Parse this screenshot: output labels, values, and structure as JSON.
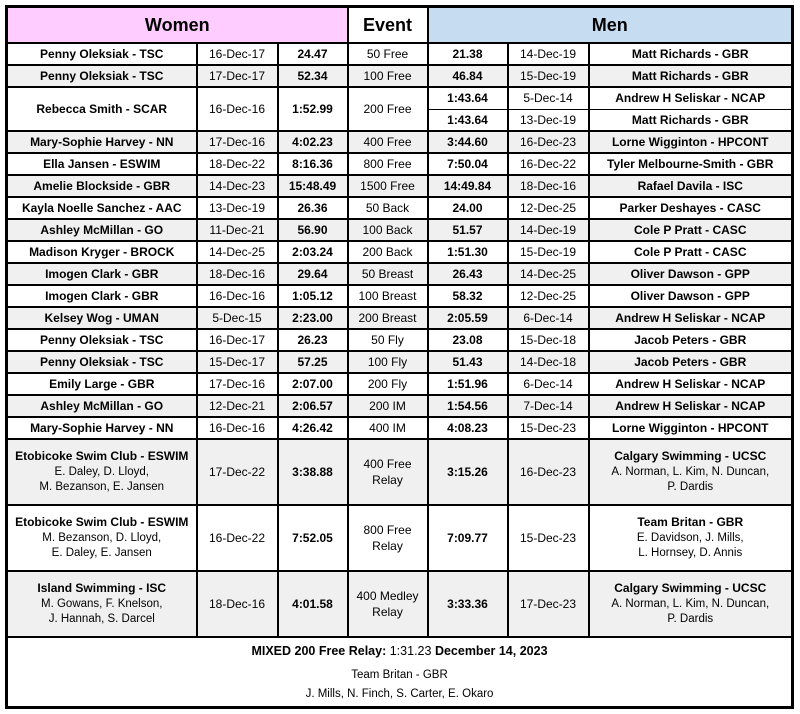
{
  "header": {
    "women": "Women",
    "event": "Event",
    "men": "Men"
  },
  "colors": {
    "women_header_bg": "#FFCCFF",
    "men_header_bg": "#C6DCF1",
    "shaded_row_bg": "#F0F0F0",
    "border": "#000000"
  },
  "rows": [
    {
      "event": "50 Free",
      "shaded": false,
      "tall": false,
      "women": {
        "name": "Penny Oleksiak - TSC",
        "date": "16-Dec-17",
        "time": "24.47"
      },
      "men": [
        {
          "time": "21.38",
          "date": "14-Dec-19",
          "name": "Matt Richards - GBR"
        }
      ]
    },
    {
      "event": "100 Free",
      "shaded": true,
      "tall": false,
      "women": {
        "name": "Penny Oleksiak - TSC",
        "date": "17-Dec-17",
        "time": "52.34"
      },
      "men": [
        {
          "time": "46.84",
          "date": "15-Dec-19",
          "name": "Matt Richards - GBR"
        }
      ]
    },
    {
      "event": "200 Free",
      "shaded": false,
      "tall": false,
      "women": {
        "name": "Rebecca Smith - SCAR",
        "date": "16-Dec-16",
        "time": "1:52.99"
      },
      "men": [
        {
          "time": "1:43.64",
          "date": "5-Dec-14",
          "name": "Andrew H Seliskar - NCAP"
        },
        {
          "time": "1:43.64",
          "date": "13-Dec-19",
          "name": "Matt Richards - GBR"
        }
      ]
    },
    {
      "event": "400 Free",
      "shaded": true,
      "tall": false,
      "women": {
        "name": "Mary-Sophie Harvey - NN",
        "date": "17-Dec-16",
        "time": "4:02.23"
      },
      "men": [
        {
          "time": "3:44.60",
          "date": "16-Dec-23",
          "name": "Lorne Wigginton - HPCONT"
        }
      ]
    },
    {
      "event": "800 Free",
      "shaded": false,
      "tall": false,
      "women": {
        "name": "Ella Jansen - ESWIM",
        "date": "18-Dec-22",
        "time": "8:16.36"
      },
      "men": [
        {
          "time": "7:50.04",
          "date": "16-Dec-22",
          "name": "Tyler Melbourne-Smith - GBR"
        }
      ]
    },
    {
      "event": "1500 Free",
      "shaded": true,
      "tall": false,
      "women": {
        "name": "Amelie Blockside - GBR",
        "date": "14-Dec-23",
        "time": "15:48.49"
      },
      "men": [
        {
          "time": "14:49.84",
          "date": "18-Dec-16",
          "name": "Rafael Davila - ISC"
        }
      ]
    },
    {
      "event": "50 Back",
      "shaded": false,
      "tall": false,
      "women": {
        "name": "Kayla Noelle Sanchez - AAC",
        "date": "13-Dec-19",
        "time": "26.36"
      },
      "men": [
        {
          "time": "24.00",
          "date": "12-Dec-25",
          "name": "Parker Deshayes - CASC"
        }
      ]
    },
    {
      "event": "100 Back",
      "shaded": true,
      "tall": false,
      "women": {
        "name": "Ashley McMillan - GO",
        "date": "11-Dec-21",
        "time": "56.90"
      },
      "men": [
        {
          "time": "51.57",
          "date": "14-Dec-19",
          "name": "Cole P Pratt - CASC"
        }
      ]
    },
    {
      "event": "200 Back",
      "shaded": false,
      "tall": false,
      "women": {
        "name": "Madison Kryger - BROCK",
        "date": "14-Dec-25",
        "time": "2:03.24"
      },
      "men": [
        {
          "time": "1:51.30",
          "date": "15-Dec-19",
          "name": "Cole P Pratt - CASC"
        }
      ]
    },
    {
      "event": "50 Breast",
      "shaded": true,
      "tall": false,
      "women": {
        "name": "Imogen Clark - GBR",
        "date": "18-Dec-16",
        "time": "29.64"
      },
      "men": [
        {
          "time": "26.43",
          "date": "14-Dec-25",
          "name": "Oliver Dawson - GPP"
        }
      ]
    },
    {
      "event": "100 Breast",
      "shaded": false,
      "tall": false,
      "women": {
        "name": "Imogen Clark - GBR",
        "date": "16-Dec-16",
        "time": "1:05.12"
      },
      "men": [
        {
          "time": "58.32",
          "date": "12-Dec-25",
          "name": "Oliver Dawson - GPP"
        }
      ]
    },
    {
      "event": "200 Breast",
      "shaded": true,
      "tall": false,
      "women": {
        "name": "Kelsey Wog - UMAN",
        "date": "5-Dec-15",
        "time": "2:23.00"
      },
      "men": [
        {
          "time": "2:05.59",
          "date": "6-Dec-14",
          "name": "Andrew H Seliskar - NCAP"
        }
      ]
    },
    {
      "event": "50 Fly",
      "shaded": false,
      "tall": false,
      "women": {
        "name": "Penny Oleksiak - TSC",
        "date": "16-Dec-17",
        "time": "26.23"
      },
      "men": [
        {
          "time": "23.08",
          "date": "15-Dec-18",
          "name": "Jacob Peters - GBR"
        }
      ]
    },
    {
      "event": "100 Fly",
      "shaded": true,
      "tall": false,
      "women": {
        "name": "Penny Oleksiak - TSC",
        "date": "15-Dec-17",
        "time": "57.25"
      },
      "men": [
        {
          "time": "51.43",
          "date": "14-Dec-18",
          "name": "Jacob Peters - GBR"
        }
      ]
    },
    {
      "event": "200 Fly",
      "shaded": false,
      "tall": false,
      "women": {
        "name": "Emily Large - GBR",
        "date": "17-Dec-16",
        "time": "2:07.00"
      },
      "men": [
        {
          "time": "1:51.96",
          "date": "6-Dec-14",
          "name": "Andrew H Seliskar - NCAP"
        }
      ]
    },
    {
      "event": "200 IM",
      "shaded": true,
      "tall": false,
      "women": {
        "name": "Ashley McMillan - GO",
        "date": "12-Dec-21",
        "time": "2:06.57"
      },
      "men": [
        {
          "time": "1:54.56",
          "date": "7-Dec-14",
          "name": "Andrew H Seliskar - NCAP"
        }
      ]
    },
    {
      "event": "400 IM",
      "shaded": false,
      "tall": false,
      "women": {
        "name": "Mary-Sophie Harvey - NN",
        "date": "16-Dec-16",
        "time": "4:26.42"
      },
      "men": [
        {
          "time": "4:08.23",
          "date": "15-Dec-23",
          "name": "Lorne Wigginton - HPCONT"
        }
      ]
    },
    {
      "event": "400 Free Relay",
      "shaded": true,
      "tall": true,
      "women": {
        "name": "Etobicoke Swim Club - ESWIM",
        "sub": [
          "E. Daley, D. Lloyd,",
          "M. Bezanson, E. Jansen"
        ],
        "date": "17-Dec-22",
        "time": "3:38.88"
      },
      "men": [
        {
          "time": "3:15.26",
          "date": "16-Dec-23",
          "name": "Calgary Swimming - UCSC",
          "sub": [
            "A. Norman, L. Kim, N. Duncan,",
            "P. Dardis"
          ]
        }
      ]
    },
    {
      "event": "800 Free Relay",
      "shaded": false,
      "tall": true,
      "women": {
        "name": "Etobicoke Swim Club - ESWIM",
        "sub": [
          "M. Bezanson, D. Lloyd,",
          "E. Daley, E. Jansen"
        ],
        "date": "16-Dec-22",
        "time": "7:52.05"
      },
      "men": [
        {
          "time": "7:09.77",
          "date": "15-Dec-23",
          "name": "Team Britan - GBR",
          "sub": [
            "E. Davidson, J. Mills,",
            "L. Hornsey, D. Annis"
          ]
        }
      ]
    },
    {
      "event": "400 Medley Relay",
      "shaded": true,
      "tall": true,
      "women": {
        "name": "Island Swimming - ISC",
        "sub": [
          "M. Gowans, F. Knelson,",
          "J. Hannah, S. Darcel"
        ],
        "date": "18-Dec-16",
        "time": "4:01.58"
      },
      "men": [
        {
          "time": "3:33.36",
          "date": "17-Dec-23",
          "name": "Calgary Swimming - UCSC",
          "sub": [
            "A. Norman, L. Kim, N. Duncan,",
            "P. Dardis"
          ]
        }
      ]
    }
  ],
  "footer": {
    "record_label": "MIXED 200 Free Relay:",
    "record_time": "1:31.23",
    "record_date": "December 14, 2023",
    "team": "Team Britan - GBR",
    "swimmers": "J. Mills, N. Finch, S. Carter, E. Okaro"
  }
}
